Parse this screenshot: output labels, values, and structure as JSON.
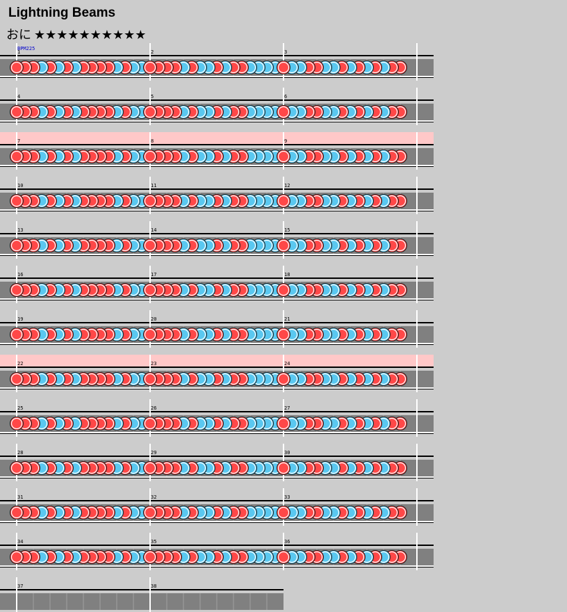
{
  "title": "Lightning Beams",
  "difficulty": "おに",
  "stars": "★★★★★★★★★★",
  "bpm_label": "BPM225",
  "measures": [
    "1",
    "2",
    "3",
    "4",
    "5",
    "6",
    "7",
    "8",
    "9",
    "10",
    "11",
    "12",
    "13",
    "14",
    "15",
    "16",
    "17",
    "18",
    "19",
    "20",
    "21",
    "22",
    "23",
    "24",
    "25",
    "26",
    "27",
    "28",
    "29",
    "30",
    "31",
    "32",
    "33",
    "34",
    "35",
    "36",
    "37",
    "38"
  ]
}
